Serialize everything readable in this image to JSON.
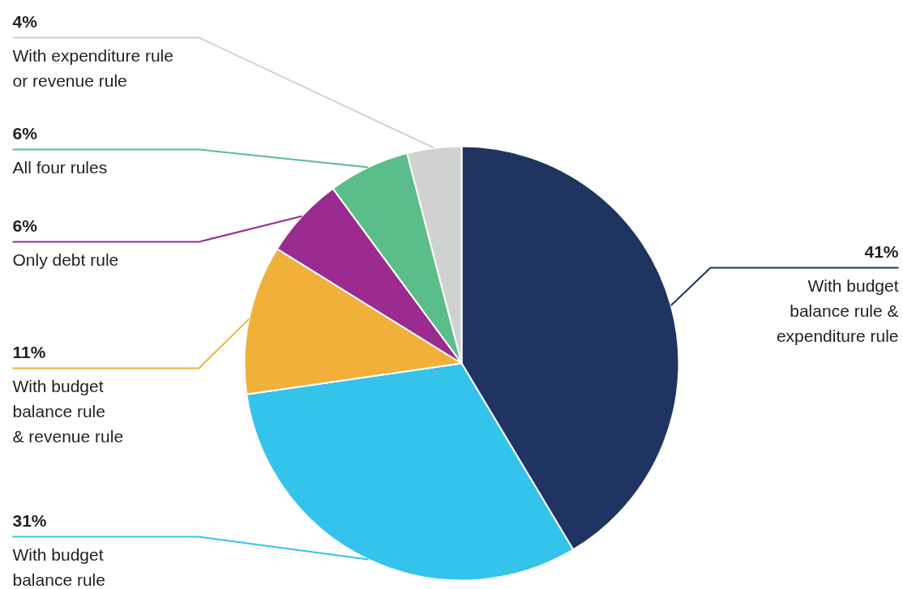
{
  "chart_data": {
    "type": "pie",
    "categories": [
      "With budget\nbalance rule &\nexpenditure rule",
      "With budget\nbalance rule",
      "With budget\nbalance rule\n& revenue rule",
      "Only debt rule",
      "All four rules",
      "With expenditure rule\nor revenue rule"
    ],
    "values": [
      41,
      31,
      11,
      6,
      6,
      4
    ],
    "value_labels": [
      "41%",
      "31%",
      "11%",
      "6%",
      "6%",
      "4%"
    ],
    "colors": [
      "#1f3461",
      "#34c3ea",
      "#f0b03a",
      "#9b2b8f",
      "#5bbd8a",
      "#d0d2d1"
    ]
  }
}
